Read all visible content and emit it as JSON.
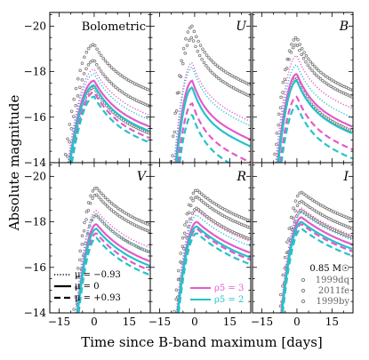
{
  "chart_data": {
    "type": "line",
    "xlabel": "Time since B-band maximum [days]",
    "ylabel": "Absolute magnitude",
    "xlim": [
      -19,
      24
    ],
    "ylim": [
      -14,
      -20.6
    ],
    "inverted_y": true,
    "x_ticks": [
      -15,
      0,
      15
    ],
    "y_ticks": [
      -20,
      -18,
      -16,
      -14
    ],
    "legend_mu": [
      {
        "label": "μ = −0.93",
        "style": "dotted"
      },
      {
        "label": "μ = 0",
        "style": "solid"
      },
      {
        "label": "μ = +0.93",
        "style": "dashed"
      }
    ],
    "legend_rho": [
      {
        "label": "ρ5 = 3",
        "color": "#e35bc9"
      },
      {
        "label": "ρ5 = 2",
        "color": "#23c3c9"
      }
    ],
    "legend_data": {
      "title": "0.85 M☉",
      "items": [
        "1999dq",
        "2011fe",
        "1999by"
      ]
    },
    "colors": {
      "rho3": "#e35bc9",
      "rho2": "#23c3c9",
      "obs": "#777777"
    },
    "panels": [
      {
        "name": "Bolometric",
        "peak": 0,
        "tau_rise": 6.0,
        "tau_decl": 15,
        "models": {
          "rho3": {
            "dotted": -18.1,
            "solid": -17.6,
            "dashed": -17.1
          },
          "rho2": {
            "dotted": -17.9,
            "solid": -17.4,
            "dashed": -16.9
          }
        },
        "observations": [
          {
            "name": "1999dq",
            "peak": -19.2,
            "start": -15
          },
          {
            "name": "2011fe",
            "peak": -18.5,
            "start": -16
          },
          {
            "name": "1999by",
            "peak": -17.3,
            "start": -10
          }
        ]
      },
      {
        "name": "U",
        "peak": -1,
        "tau_rise": 4.0,
        "tau_decl": 9,
        "models": {
          "rho3": {
            "dotted": -18.4,
            "solid": -17.6,
            "dashed": -16.6
          },
          "rho2": {
            "dotted": -18.2,
            "solid": -17.3,
            "dashed": -16.1
          }
        },
        "observations": [
          {
            "name": "1999dq",
            "peak": -20.0,
            "start": -11
          },
          {
            "name": "2011fe",
            "peak": -19.5,
            "start": -14
          }
        ]
      },
      {
        "name": "B",
        "peak": 0,
        "tau_rise": 4.5,
        "tau_decl": 11,
        "models": {
          "rho3": {
            "dotted": -18.7,
            "solid": -17.9,
            "dashed": -16.9
          },
          "rho2": {
            "dotted": -18.3,
            "solid": -17.6,
            "dashed": -16.5
          }
        },
        "observations": [
          {
            "name": "1999dq",
            "peak": -19.5,
            "start": -14
          },
          {
            "name": "2011fe",
            "peak": -19.2,
            "start": -16
          },
          {
            "name": "1999by",
            "peak": -17.7,
            "start": -9
          }
        ]
      },
      {
        "name": "V",
        "peak": 1,
        "tau_rise": 4.5,
        "tau_decl": 22,
        "models": {
          "rho3": {
            "dotted": -18.5,
            "solid": -17.9,
            "dashed": -17.5
          },
          "rho2": {
            "dotted": -18.3,
            "solid": -17.7,
            "dashed": -17.3
          }
        },
        "observations": [
          {
            "name": "1999dq",
            "peak": -19.5,
            "start": -15
          },
          {
            "name": "2011fe",
            "peak": -19.2,
            "start": -16
          },
          {
            "name": "1999by",
            "peak": -18.3,
            "start": -10
          }
        ]
      },
      {
        "name": "R",
        "peak": 1,
        "tau_rise": 4.5,
        "tau_decl": 30,
        "models": {
          "rho3": {
            "dotted": -18.5,
            "solid": -18.0,
            "dashed": -17.7
          },
          "rho2": {
            "dotted": -18.3,
            "solid": -17.8,
            "dashed": -17.5
          }
        },
        "observations": [
          {
            "name": "1999dq",
            "peak": -19.4,
            "start": -15
          },
          {
            "name": "2011fe",
            "peak": -19.1,
            "start": -16
          },
          {
            "name": "1999by",
            "peak": -18.6,
            "start": -10
          }
        ]
      },
      {
        "name": "I",
        "peak": 2,
        "tau_rise": 4.5,
        "tau_decl": 35,
        "models": {
          "rho3": {
            "dotted": -18.6,
            "solid": -18.2,
            "dashed": -17.9
          },
          "rho2": {
            "dotted": -18.4,
            "solid": -18.0,
            "dashed": -17.7
          }
        },
        "observations": [
          {
            "name": "1999dq",
            "peak": -19.3,
            "start": -15
          },
          {
            "name": "2011fe",
            "peak": -18.9,
            "start": -16
          },
          {
            "name": "1999by",
            "peak": -18.5,
            "start": -10
          }
        ]
      }
    ]
  }
}
